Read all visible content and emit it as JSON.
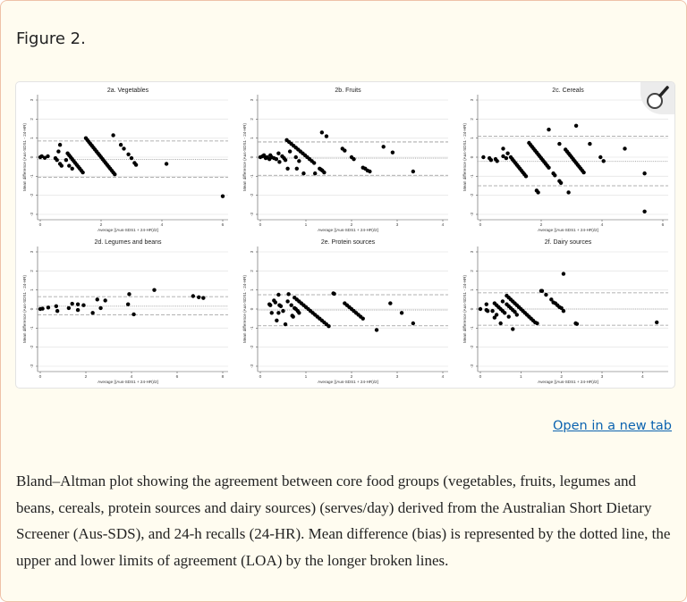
{
  "figure": {
    "title": "Figure 2.",
    "open_link": "Open in a new tab",
    "caption": "Bland–Altman plot showing the agreement between core food groups (vegetables, fruits, legumes and beans, cereals, protein sources and dairy sources) (serves/day) derived from the Australian Short Dietary Screener (Aus-SDS), and 24-h recalls (24-HR). Mean difference (bias) is represented by the dotted line, the upper and lower limits of agreement (LOA) by the longer broken lines.",
    "zoom_icon": "magnifier-icon"
  },
  "colors": {
    "background": "#fffcf0",
    "border": "#efc2a8",
    "link": "#0b63b0",
    "points": "#000000",
    "loa_lines": "#a0a0a0"
  },
  "chart_data": [
    {
      "type": "scatter",
      "title": "2a. Vegetables",
      "xlabel": "Average [(Aus-SDS1 + 24-HR)/2]",
      "ylabel": "Mean difference (Aus-SDS1 - 24-HR)",
      "xlim": [
        0,
        6
      ],
      "ylim": [
        -3,
        3
      ],
      "xticks": [
        0,
        2,
        4,
        6
      ],
      "yticks": [
        -3,
        -2,
        -1,
        0,
        1,
        2,
        3
      ],
      "grid": true,
      "mean_diff": -0.12,
      "upper_loa": 0.85,
      "lower_loa": -1.05,
      "points": [
        [
          0,
          0
        ],
        [
          0.05,
          0.05
        ],
        [
          0.15,
          -0.03
        ],
        [
          0.25,
          0.05
        ],
        [
          0.5,
          -0.05
        ],
        [
          0.55,
          -0.15
        ],
        [
          0.6,
          0.3
        ],
        [
          0.65,
          0.65
        ],
        [
          0.65,
          -0.35
        ],
        [
          0.7,
          -0.45
        ],
        [
          0.85,
          -0.15
        ],
        [
          0.95,
          -0.45
        ],
        [
          1.05,
          -0.6
        ],
        [
          0.9,
          0.2
        ],
        [
          0.95,
          0.1
        ],
        [
          1.0,
          0
        ],
        [
          1.05,
          -0.1
        ],
        [
          1.1,
          -0.2
        ],
        [
          1.15,
          -0.3
        ],
        [
          1.2,
          -0.4
        ],
        [
          1.25,
          -0.5
        ],
        [
          1.3,
          -0.6
        ],
        [
          1.35,
          -0.7
        ],
        [
          1.4,
          -0.8
        ],
        [
          1.5,
          1.0
        ],
        [
          1.55,
          0.9
        ],
        [
          1.6,
          0.8
        ],
        [
          1.65,
          0.7
        ],
        [
          1.7,
          0.6
        ],
        [
          1.75,
          0.5
        ],
        [
          1.8,
          0.4
        ],
        [
          1.85,
          0.3
        ],
        [
          1.9,
          0.2
        ],
        [
          1.95,
          0.1
        ],
        [
          2.0,
          0
        ],
        [
          2.05,
          -0.1
        ],
        [
          2.1,
          -0.2
        ],
        [
          2.15,
          -0.3
        ],
        [
          2.2,
          -0.4
        ],
        [
          2.25,
          -0.5
        ],
        [
          2.3,
          -0.6
        ],
        [
          2.35,
          -0.7
        ],
        [
          2.4,
          -0.8
        ],
        [
          2.45,
          -0.9
        ],
        [
          2.4,
          1.15
        ],
        [
          2.65,
          0.65
        ],
        [
          2.75,
          0.45
        ],
        [
          2.9,
          0.15
        ],
        [
          3.0,
          -0.05
        ],
        [
          3.1,
          -0.3
        ],
        [
          3.15,
          -0.4
        ],
        [
          4.15,
          -0.35
        ],
        [
          6.0,
          -2.05
        ]
      ]
    },
    {
      "type": "scatter",
      "title": "2b. Fruits",
      "xlabel": "Average [(Aus-SDS1 + 24-HR)/2]",
      "ylabel": "Mean difference (Aus-SDS1 - 24-HR)",
      "xlim": [
        0,
        4
      ],
      "ylim": [
        -3,
        3
      ],
      "xticks": [
        0,
        1,
        2,
        3,
        4
      ],
      "yticks": [
        -3,
        -2,
        -1,
        0,
        1,
        2,
        3
      ],
      "grid": true,
      "mean_diff": -0.05,
      "upper_loa": 0.8,
      "lower_loa": -0.95,
      "points": [
        [
          0,
          0
        ],
        [
          0.05,
          0.05
        ],
        [
          0.08,
          0.1
        ],
        [
          0.12,
          -0.05
        ],
        [
          0.15,
          0
        ],
        [
          0.2,
          -0.1
        ],
        [
          0.22,
          0.1
        ],
        [
          0.25,
          0
        ],
        [
          0.3,
          -0.05
        ],
        [
          0.35,
          -0.1
        ],
        [
          0.4,
          0.2
        ],
        [
          0.42,
          -0.25
        ],
        [
          0.48,
          0.05
        ],
        [
          0.52,
          -0.05
        ],
        [
          0.55,
          -0.15
        ],
        [
          0.6,
          -0.6
        ],
        [
          0.65,
          0.3
        ],
        [
          0.78,
          0
        ],
        [
          0.8,
          -0.6
        ],
        [
          0.85,
          -0.2
        ],
        [
          0.95,
          -0.85
        ],
        [
          1.2,
          -0.85
        ],
        [
          1.35,
          1.3
        ],
        [
          1.45,
          1.1
        ],
        [
          0.58,
          0.9
        ],
        [
          0.63,
          0.8
        ],
        [
          0.68,
          0.7
        ],
        [
          0.73,
          0.6
        ],
        [
          0.78,
          0.5
        ],
        [
          0.83,
          0.4
        ],
        [
          0.88,
          0.3
        ],
        [
          0.93,
          0.2
        ],
        [
          0.98,
          0.1
        ],
        [
          1.03,
          0
        ],
        [
          1.08,
          -0.1
        ],
        [
          1.13,
          -0.2
        ],
        [
          1.18,
          -0.3
        ],
        [
          1.3,
          -0.6
        ],
        [
          1.33,
          -0.65
        ],
        [
          1.36,
          -0.7
        ],
        [
          1.4,
          -0.8
        ],
        [
          1.8,
          0.45
        ],
        [
          1.85,
          0.35
        ],
        [
          2.0,
          0
        ],
        [
          2.05,
          -0.1
        ],
        [
          2.25,
          -0.55
        ],
        [
          2.3,
          -0.6
        ],
        [
          2.35,
          -0.7
        ],
        [
          2.4,
          -0.75
        ],
        [
          2.7,
          0.55
        ],
        [
          2.9,
          0.25
        ],
        [
          3.35,
          -0.75
        ]
      ]
    },
    {
      "type": "scatter",
      "title": "2c. Cereals",
      "xlabel": "Average [(Aus-SDS1 + 24-HR)/2]",
      "ylabel": "Mean difference (Aus-SDS1 - 24-HR)",
      "xlim": [
        0,
        6
      ],
      "ylim": [
        -3,
        3
      ],
      "xticks": [
        0,
        2,
        4,
        6
      ],
      "yticks": [
        -3,
        -2,
        -1,
        0,
        1,
        2,
        3
      ],
      "grid": true,
      "mean_diff": -0.22,
      "upper_loa": 1.1,
      "lower_loa": -1.5,
      "points": [
        [
          0.1,
          0
        ],
        [
          0.3,
          -0.05
        ],
        [
          0.35,
          -0.15
        ],
        [
          0.5,
          -0.1
        ],
        [
          0.55,
          -0.2
        ],
        [
          0.75,
          0.45
        ],
        [
          0.75,
          0.05
        ],
        [
          0.85,
          -0.05
        ],
        [
          0.9,
          0.2
        ],
        [
          1.0,
          0
        ],
        [
          1.05,
          -0.1
        ],
        [
          1.1,
          -0.2
        ],
        [
          1.15,
          -0.3
        ],
        [
          1.2,
          -0.4
        ],
        [
          1.25,
          -0.5
        ],
        [
          1.3,
          -0.6
        ],
        [
          1.35,
          -0.7
        ],
        [
          1.4,
          -0.8
        ],
        [
          1.45,
          -0.9
        ],
        [
          1.5,
          -1.0
        ],
        [
          1.6,
          0.75
        ],
        [
          1.65,
          0.65
        ],
        [
          1.7,
          0.55
        ],
        [
          1.75,
          0.45
        ],
        [
          1.8,
          0.35
        ],
        [
          1.85,
          0.25
        ],
        [
          1.9,
          0.15
        ],
        [
          1.95,
          0.05
        ],
        [
          2.0,
          -0.05
        ],
        [
          2.05,
          -0.15
        ],
        [
          2.1,
          -0.25
        ],
        [
          2.15,
          -0.35
        ],
        [
          2.2,
          -0.45
        ],
        [
          2.25,
          -0.55
        ],
        [
          1.85,
          -1.75
        ],
        [
          1.9,
          -1.85
        ],
        [
          2.25,
          1.45
        ],
        [
          2.4,
          -0.85
        ],
        [
          2.45,
          -0.95
        ],
        [
          2.6,
          0.7
        ],
        [
          2.6,
          -1.25
        ],
        [
          2.65,
          -1.35
        ],
        [
          2.9,
          -1.85
        ],
        [
          2.8,
          0.4
        ],
        [
          2.85,
          0.3
        ],
        [
          2.9,
          0.2
        ],
        [
          2.95,
          0.1
        ],
        [
          3.0,
          0
        ],
        [
          3.05,
          -0.1
        ],
        [
          3.1,
          -0.2
        ],
        [
          3.15,
          -0.3
        ],
        [
          3.2,
          -0.4
        ],
        [
          3.25,
          -0.5
        ],
        [
          3.3,
          -0.6
        ],
        [
          3.35,
          -0.7
        ],
        [
          3.4,
          -0.8
        ],
        [
          3.15,
          1.65
        ],
        [
          3.6,
          0.7
        ],
        [
          3.95,
          0
        ],
        [
          4.05,
          -0.2
        ],
        [
          4.75,
          0.45
        ],
        [
          5.4,
          -0.85
        ],
        [
          5.4,
          -2.85
        ]
      ]
    },
    {
      "type": "scatter",
      "title": "2d. Legumes and beans",
      "xlabel": "Average [(Aus-SDS1 + 24-HR)/2]",
      "ylabel": "Mean difference (Aus-SDS1 - 24-HR)",
      "xlim": [
        0,
        8
      ],
      "ylim": [
        -3,
        3
      ],
      "xticks": [
        0,
        2,
        4,
        6,
        8
      ],
      "yticks": [
        -3,
        -2,
        -1,
        0,
        1,
        2,
        3
      ],
      "grid": true,
      "mean_diff": 0.15,
      "upper_loa": 0.65,
      "lower_loa": -0.3,
      "points": [
        [
          0,
          0
        ],
        [
          0.1,
          0.02
        ],
        [
          0.35,
          0.08
        ],
        [
          0.7,
          0.15
        ],
        [
          0.75,
          -0.1
        ],
        [
          1.25,
          0.05
        ],
        [
          1.4,
          0.28
        ],
        [
          1.65,
          0.25
        ],
        [
          1.65,
          -0.05
        ],
        [
          1.9,
          0.2
        ],
        [
          2.3,
          -0.2
        ],
        [
          2.5,
          0.5
        ],
        [
          2.65,
          0.05
        ],
        [
          2.85,
          0.45
        ],
        [
          3.85,
          0.25
        ],
        [
          3.9,
          0.78
        ],
        [
          4.1,
          -0.28
        ],
        [
          5.0,
          1.0
        ],
        [
          6.7,
          0.68
        ],
        [
          6.95,
          0.62
        ],
        [
          7.15,
          0.58
        ]
      ]
    },
    {
      "type": "scatter",
      "title": "2e. Protein sources",
      "xlabel": "Average [(Aus-SDS1 + 24-HR)/2]",
      "ylabel": "Mean difference (Aus-SDS1 - 24-HR)",
      "xlim": [
        0,
        4
      ],
      "ylim": [
        -3,
        3
      ],
      "xticks": [
        0,
        1,
        2,
        3,
        4
      ],
      "yticks": [
        -3,
        -2,
        -1,
        0,
        1,
        2,
        3
      ],
      "grid": true,
      "mean_diff": -0.05,
      "upper_loa": 0.75,
      "lower_loa": -0.88,
      "points": [
        [
          0.2,
          0.25
        ],
        [
          0.22,
          0.2
        ],
        [
          0.25,
          -0.2
        ],
        [
          0.3,
          0.45
        ],
        [
          0.33,
          0.35
        ],
        [
          0.36,
          -0.6
        ],
        [
          0.4,
          0.75
        ],
        [
          0.4,
          -0.2
        ],
        [
          0.42,
          0.2
        ],
        [
          0.45,
          0.15
        ],
        [
          0.5,
          -0.1
        ],
        [
          0.55,
          -0.8
        ],
        [
          0.6,
          0.4
        ],
        [
          0.62,
          0.78
        ],
        [
          0.68,
          0.2
        ],
        [
          0.7,
          -0.35
        ],
        [
          0.72,
          -0.4
        ],
        [
          0.75,
          0.05
        ],
        [
          0.78,
          0
        ],
        [
          0.82,
          -0.1
        ],
        [
          0.85,
          -0.2
        ],
        [
          0.75,
          0.6
        ],
        [
          0.8,
          0.5
        ],
        [
          0.85,
          0.4
        ],
        [
          0.9,
          0.3
        ],
        [
          0.95,
          0.2
        ],
        [
          1.0,
          0.1
        ],
        [
          1.05,
          0
        ],
        [
          1.1,
          -0.1
        ],
        [
          1.15,
          -0.2
        ],
        [
          1.2,
          -0.3
        ],
        [
          1.25,
          -0.4
        ],
        [
          1.3,
          -0.5
        ],
        [
          1.35,
          -0.6
        ],
        [
          1.4,
          -0.7
        ],
        [
          1.45,
          -0.8
        ],
        [
          1.5,
          -0.9
        ],
        [
          1.6,
          0.82
        ],
        [
          1.62,
          0.8
        ],
        [
          1.85,
          0.3
        ],
        [
          1.9,
          0.2
        ],
        [
          1.95,
          0.1
        ],
        [
          2.0,
          0
        ],
        [
          2.05,
          -0.1
        ],
        [
          2.1,
          -0.2
        ],
        [
          2.15,
          -0.3
        ],
        [
          2.2,
          -0.4
        ],
        [
          2.25,
          -0.5
        ],
        [
          2.55,
          -1.1
        ],
        [
          2.85,
          0.3
        ],
        [
          3.1,
          -0.2
        ],
        [
          3.35,
          -0.75
        ]
      ]
    },
    {
      "type": "scatter",
      "title": "2f. Dairy sources",
      "xlabel": "Average [(Aus-SDS1 + 24-HR)/2]",
      "ylabel": "Mean difference (Aus-SDS1 - 24-HR)",
      "xlim": [
        0,
        4.5
      ],
      "ylim": [
        -3,
        3
      ],
      "xticks": [
        0,
        1,
        2,
        3,
        4
      ],
      "yticks": [
        -3,
        -2,
        -1,
        0,
        1,
        2,
        3
      ],
      "grid": true,
      "mean_diff": 0,
      "upper_loa": 0.85,
      "lower_loa": -0.85,
      "points": [
        [
          0,
          0
        ],
        [
          0.15,
          0.25
        ],
        [
          0.15,
          -0.05
        ],
        [
          0.18,
          -0.1
        ],
        [
          0.3,
          -0.1
        ],
        [
          0.35,
          -0.45
        ],
        [
          0.4,
          -0.3
        ],
        [
          0.5,
          -0.75
        ],
        [
          0.55,
          0.4
        ],
        [
          0.7,
          -0.4
        ],
        [
          0.8,
          -1.05
        ],
        [
          0.35,
          0.3
        ],
        [
          0.4,
          0.2
        ],
        [
          0.45,
          0.1
        ],
        [
          0.5,
          0
        ],
        [
          0.55,
          -0.1
        ],
        [
          0.6,
          -0.2
        ],
        [
          0.65,
          0.25
        ],
        [
          0.7,
          0.15
        ],
        [
          0.75,
          0.05
        ],
        [
          0.8,
          -0.05
        ],
        [
          0.85,
          -0.15
        ],
        [
          0.9,
          -0.3
        ],
        [
          0.65,
          0.7
        ],
        [
          0.7,
          0.6
        ],
        [
          0.75,
          0.5
        ],
        [
          0.8,
          0.4
        ],
        [
          0.85,
          0.3
        ],
        [
          0.9,
          0.2
        ],
        [
          0.95,
          0.1
        ],
        [
          1.0,
          0
        ],
        [
          1.05,
          -0.1
        ],
        [
          1.1,
          -0.2
        ],
        [
          1.15,
          -0.3
        ],
        [
          1.2,
          -0.4
        ],
        [
          1.25,
          -0.5
        ],
        [
          1.3,
          -0.6
        ],
        [
          1.35,
          -0.7
        ],
        [
          1.4,
          -0.75
        ],
        [
          1.5,
          0.95
        ],
        [
          1.52,
          0.95
        ],
        [
          1.62,
          0.75
        ],
        [
          1.75,
          0.5
        ],
        [
          1.8,
          0.35
        ],
        [
          1.85,
          0.3
        ],
        [
          1.9,
          0.2
        ],
        [
          1.95,
          0.1
        ],
        [
          2.0,
          0.05
        ],
        [
          2.05,
          -0.1
        ],
        [
          2.05,
          1.85
        ],
        [
          2.35,
          -0.75
        ],
        [
          2.38,
          -0.78
        ],
        [
          4.35,
          -0.7
        ]
      ]
    }
  ]
}
